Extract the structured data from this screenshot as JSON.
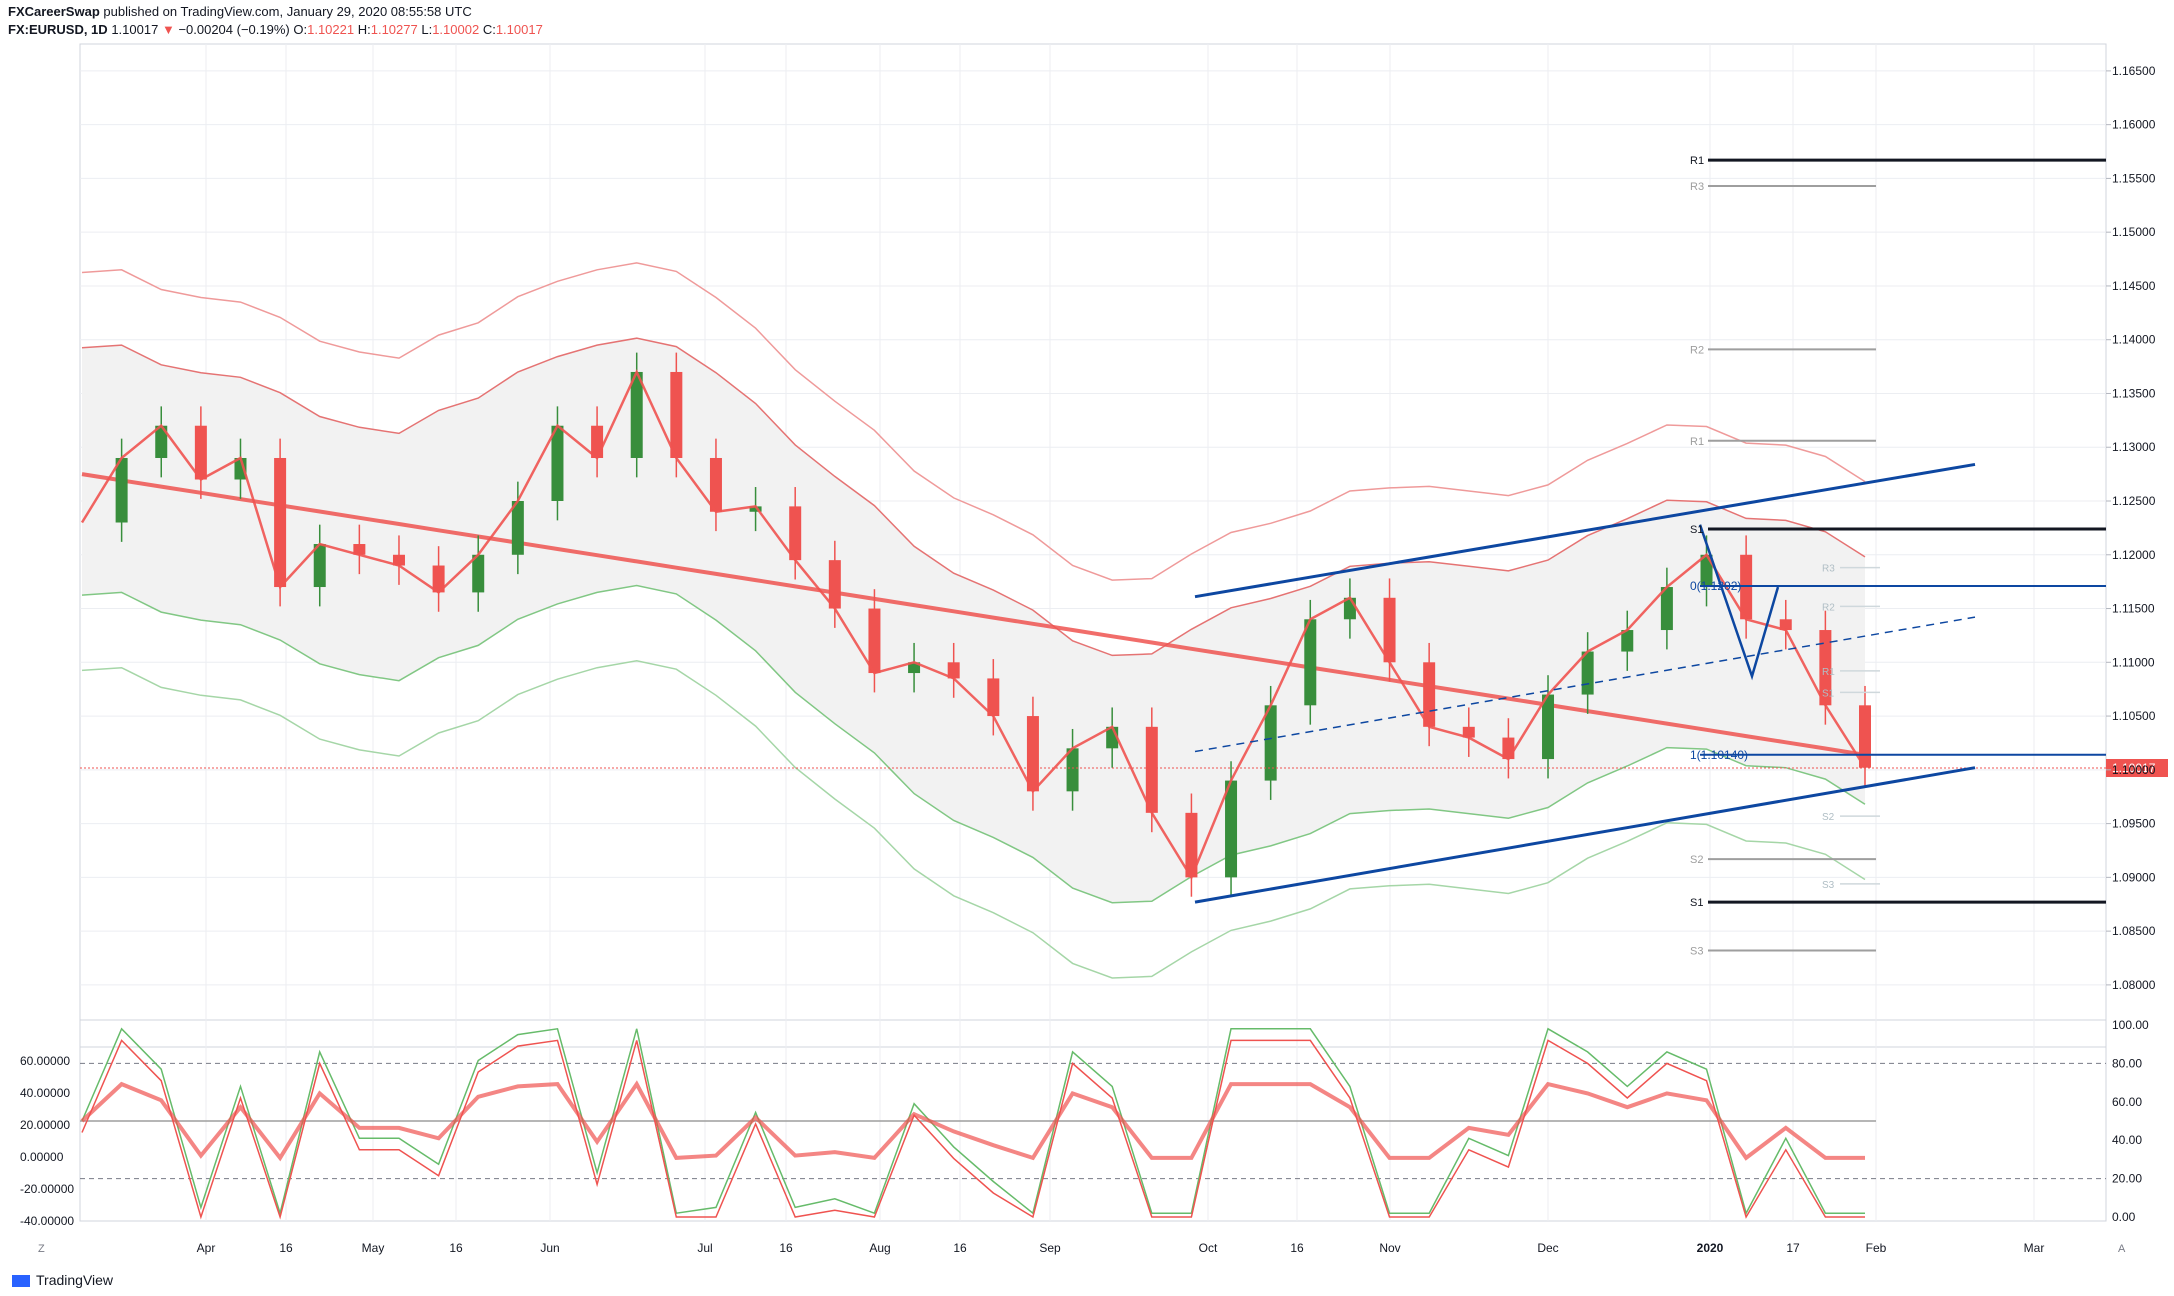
{
  "header": {
    "author": "FXCareerSwap",
    "published": "published on TradingView.com, January 29, 2020 08:55:58 UTC",
    "symbol": "FX:EURUSD, 1D",
    "last": "1.10017",
    "change": "−0.00204 (−0.19%)",
    "open_label": "O:",
    "open": "1.10221",
    "high_label": "H:",
    "high": "1.10277",
    "low_label": "L:",
    "low": "1.10002",
    "close_label": "C:",
    "close": "1.10017"
  },
  "footer": {
    "brand": "TradingView",
    "zoom_button": "Z",
    "auto_button": "A"
  },
  "colors": {
    "bull": "#26a69a",
    "bull_candle": "#388e3c",
    "bear": "#ef5350",
    "trend": "#0d47a1",
    "ma": "#e57373",
    "price_line": "#ef5350"
  },
  "chart_data": [
    {
      "type": "line",
      "title": "FX:EURUSD, 1D",
      "y_axis": {
        "ticks": [
          "1.16500",
          "1.16000",
          "1.15500",
          "1.15000",
          "1.14500",
          "1.14000",
          "1.13500",
          "1.13000",
          "1.12500",
          "1.12000",
          "1.11500",
          "1.11000",
          "1.10500",
          "1.10000",
          "1.09500",
          "1.09000",
          "1.08500",
          "1.08000"
        ],
        "range": [
          1.0772,
          1.1675
        ]
      },
      "x_axis": {
        "ticks": [
          "Apr",
          "16",
          "May",
          "16",
          "Jun",
          "Jul",
          "16",
          "Aug",
          "16",
          "Sep",
          "Oct",
          "16",
          "Nov",
          "Dec",
          "2020",
          "17",
          "Feb",
          "Mar"
        ]
      },
      "last_price_label": "1.10017",
      "series": [
        {
          "name": "",
          "x": [
            "Mar 20",
            "Mar 27",
            "Apr 3",
            "Apr 10",
            "Apr 17",
            "Apr 24",
            "May 1",
            "May 8",
            "May 15",
            "May 22",
            "May 29",
            "Jun 5",
            "Jun 12",
            "Jun 19",
            "Jun 26",
            "Jul 3",
            "Jul 10",
            "Jul 17",
            "Jul 24",
            "Jul 31",
            "Aug 7",
            "Aug 14",
            "Aug 21",
            "Aug 28",
            "Sep 4",
            "Sep 11",
            "Sep 18",
            "Sep 25",
            "Oct 2",
            "Oct 9",
            "Oct 16",
            "Oct 23",
            "Oct 30",
            "Nov 6",
            "Nov 13",
            "Nov 20",
            "Nov 27",
            "Dec 4",
            "Dec 11",
            "Dec 18",
            "Dec 25",
            "Jan 1",
            "Jan 8",
            "Jan 15",
            "Jan 22",
            "Jan 29"
          ],
          "y": [
            1.123,
            1.129,
            1.132,
            1.127,
            1.129,
            1.117,
            1.121,
            1.12,
            1.119,
            1.1165,
            1.12,
            1.125,
            1.132,
            1.129,
            1.137,
            1.129,
            1.124,
            1.1245,
            1.1195,
            1.115,
            1.109,
            1.11,
            1.1085,
            1.105,
            1.098,
            1.102,
            1.104,
            1.096,
            1.09,
            1.099,
            1.106,
            1.114,
            1.116,
            1.11,
            1.104,
            1.103,
            1.101,
            1.107,
            1.111,
            1.113,
            1.117,
            1.12,
            1.114,
            1.113,
            1.106,
            1.1002
          ]
        }
      ],
      "annotations": {
        "pivot_right": [
          "R1",
          "R3",
          "R2",
          "R1",
          "S1",
          "S2",
          "S1",
          "S3"
        ],
        "pivot_labels_small": [
          "R3",
          "R2",
          "R1",
          "S1",
          "S2",
          "S3"
        ],
        "fib_labels": [
          "0(1.1202)",
          "1(1.10140)"
        ]
      }
    },
    {
      "type": "line",
      "title": "",
      "y_axis_left": {
        "ticks": [
          "60.00000",
          "40.00000",
          "20.00000",
          "0.00000",
          "-20.00000",
          "-40.00000"
        ]
      },
      "y_axis_right": {
        "ticks": [
          "100.00",
          "80.00",
          "60.00",
          "40.00",
          "20.00",
          "0.00"
        ]
      },
      "levels": [
        80,
        20
      ]
    }
  ]
}
